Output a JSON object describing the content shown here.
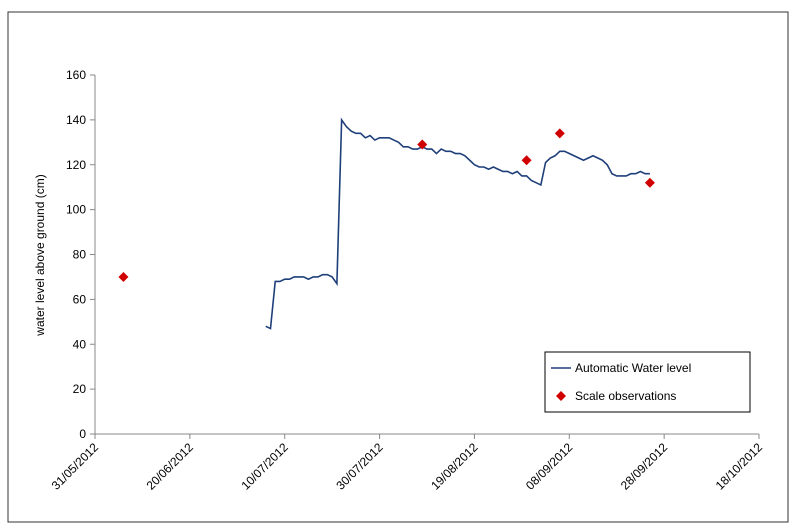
{
  "chart_data": {
    "type": "line",
    "y_label": "water level above ground (cm)",
    "xlim": [
      "31/05/2012",
      "18/10/2012"
    ],
    "xticks": [
      "31/05/2012",
      "20/06/2012",
      "10/07/2012",
      "30/07/2012",
      "19/08/2012",
      "08/09/2012",
      "28/09/2012",
      "18/10/2012"
    ],
    "ylim": [
      0,
      160
    ],
    "yticks": [
      0,
      20,
      40,
      60,
      80,
      100,
      120,
      140,
      160
    ],
    "grid": false,
    "legend": "lower right",
    "series": [
      {
        "name": "Automatic Water level",
        "type": "line",
        "color": "#1f3f7a",
        "x": [
          "06/07/2012",
          "07/07/2012",
          "08/07/2012",
          "09/07/2012",
          "10/07/2012",
          "11/07/2012",
          "12/07/2012",
          "13/07/2012",
          "14/07/2012",
          "15/07/2012",
          "16/07/2012",
          "17/07/2012",
          "18/07/2012",
          "19/07/2012",
          "20/07/2012",
          "21/07/2012",
          "22/07/2012",
          "23/07/2012",
          "24/07/2012",
          "25/07/2012",
          "26/07/2012",
          "27/07/2012",
          "28/07/2012",
          "29/07/2012",
          "30/07/2012",
          "31/07/2012",
          "01/08/2012",
          "02/08/2012",
          "03/08/2012",
          "04/08/2012",
          "05/08/2012",
          "06/08/2012",
          "07/08/2012",
          "08/08/2012",
          "09/08/2012",
          "10/08/2012",
          "11/08/2012",
          "12/08/2012",
          "13/08/2012",
          "14/08/2012",
          "15/08/2012",
          "16/08/2012",
          "17/08/2012",
          "18/08/2012",
          "19/08/2012",
          "20/08/2012",
          "21/08/2012",
          "22/08/2012",
          "23/08/2012",
          "24/08/2012",
          "25/08/2012",
          "26/08/2012",
          "27/08/2012",
          "28/08/2012",
          "29/08/2012",
          "30/08/2012",
          "31/08/2012",
          "01/09/2012",
          "02/09/2012",
          "03/09/2012",
          "04/09/2012",
          "05/09/2012",
          "06/09/2012",
          "07/09/2012",
          "08/09/2012",
          "09/09/2012",
          "10/09/2012",
          "11/09/2012",
          "12/09/2012",
          "13/09/2012",
          "14/09/2012",
          "15/09/2012",
          "16/09/2012",
          "17/09/2012",
          "18/09/2012",
          "19/09/2012",
          "20/09/2012",
          "21/09/2012",
          "22/09/2012",
          "23/09/2012",
          "24/09/2012",
          "25/09/2012"
        ],
        "values": [
          48,
          47,
          68,
          68,
          69,
          69,
          70,
          70,
          70,
          69,
          70,
          70,
          71,
          71,
          70,
          67,
          140,
          137,
          135,
          134,
          134,
          132,
          133,
          131,
          132,
          132,
          132,
          131,
          130,
          128,
          128,
          127,
          127,
          128,
          127,
          127,
          125,
          127,
          126,
          126,
          125,
          125,
          124,
          122,
          120,
          119,
          119,
          118,
          119,
          118,
          117,
          117,
          116,
          117,
          115,
          115,
          113,
          112,
          111,
          121,
          123,
          124,
          126,
          126,
          125,
          124,
          123,
          122,
          123,
          124,
          123,
          122,
          120,
          116,
          115,
          115,
          115,
          116,
          116,
          117,
          116,
          116
        ]
      },
      {
        "name": "Scale observations",
        "type": "scatter",
        "color": "#d00000",
        "x": [
          "06/06/2012",
          "08/08/2012",
          "30/08/2012",
          "06/09/2012",
          "25/09/2012"
        ],
        "values": [
          70,
          129,
          122,
          134,
          112
        ]
      }
    ]
  }
}
